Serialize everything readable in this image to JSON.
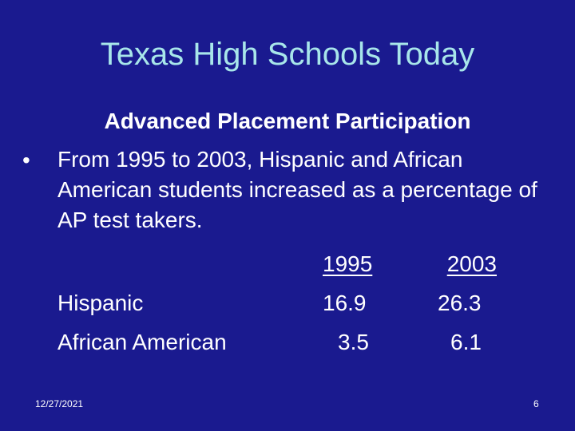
{
  "slide": {
    "title": "Texas High Schools Today",
    "subtitle": "Advanced Placement Participation",
    "bullet_marker": "•",
    "bullet_text": "From 1995 to 2003, Hispanic and African American students increased as a percentage of AP test takers.",
    "table": {
      "header_left": "1995",
      "header_right": "2003",
      "rows": [
        {
          "label": "Hispanic",
          "v1995": "16.9",
          "v2003": "26.3"
        },
        {
          "label": "African American",
          "v1995": "3.5",
          "v2003": "6.1"
        }
      ]
    },
    "footer": {
      "date": "12/27/2021",
      "page_number": "6"
    }
  },
  "colors": {
    "background": "#1a1a8f",
    "title": "#a8e6ea",
    "text": "#ffffff"
  }
}
